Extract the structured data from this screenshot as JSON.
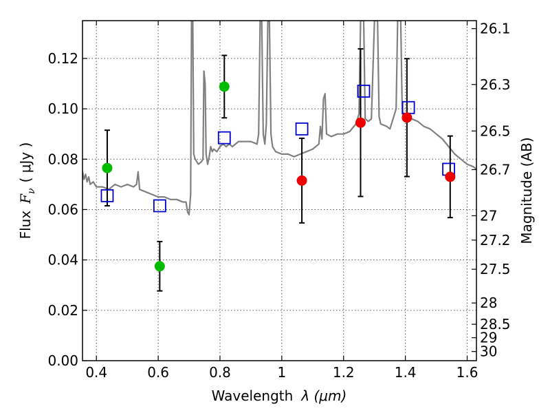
{
  "chart_data": {
    "type": "scatter",
    "xlabel_text": "Wavelength",
    "xlabel_math": "λ (μm)",
    "ylabel_text": "Flux",
    "ylabel_math_F": "F",
    "ylabel_math_nu": "ν",
    "ylabel_unit": "( μJy )",
    "y2label": "Magnitude (AB)",
    "xlim": [
      0.355,
      1.63
    ],
    "ylim": [
      0.0,
      0.135
    ],
    "x_ticks": [
      0.4,
      0.6,
      0.8,
      1.0,
      1.2,
      1.4,
      1.6
    ],
    "x_tick_labels": [
      "0.4",
      "0.6",
      "0.8",
      "1",
      "1.2",
      "1.4",
      "1.6"
    ],
    "y_ticks": [
      0.0,
      0.02,
      0.04,
      0.06,
      0.08,
      0.1,
      0.12
    ],
    "y_tick_labels": [
      "0.00",
      "0.02",
      "0.04",
      "0.06",
      "0.08",
      "0.10",
      "0.12"
    ],
    "y2_ticks": [
      26.1,
      26.3,
      26.5,
      26.7,
      27,
      27.2,
      27.5,
      28,
      28.5,
      29,
      30
    ],
    "y2_tick_labels": [
      "26.1",
      "26.3",
      "26.5",
      "26.7",
      "27",
      "27.2",
      "27.5",
      "28",
      "28.5",
      "29",
      "30"
    ],
    "grid": true,
    "colors": {
      "spectrum": "#808080",
      "green_points": "#00bb00",
      "red_points": "#ee0000",
      "model_squares": "#0000cc",
      "errorbars": "#000000"
    },
    "spectrum": [
      [
        0.355,
        0.075
      ],
      [
        0.36,
        0.072
      ],
      [
        0.365,
        0.074
      ],
      [
        0.37,
        0.071
      ],
      [
        0.375,
        0.073
      ],
      [
        0.38,
        0.07
      ],
      [
        0.39,
        0.071
      ],
      [
        0.4,
        0.069
      ],
      [
        0.42,
        0.069
      ],
      [
        0.44,
        0.068
      ],
      [
        0.46,
        0.07
      ],
      [
        0.48,
        0.069
      ],
      [
        0.5,
        0.07
      ],
      [
        0.52,
        0.069
      ],
      [
        0.53,
        0.07
      ],
      [
        0.535,
        0.075
      ],
      [
        0.54,
        0.068
      ],
      [
        0.56,
        0.067
      ],
      [
        0.58,
        0.066
      ],
      [
        0.6,
        0.065
      ],
      [
        0.62,
        0.065
      ],
      [
        0.64,
        0.064
      ],
      [
        0.66,
        0.064
      ],
      [
        0.68,
        0.063
      ],
      [
        0.69,
        0.063
      ],
      [
        0.695,
        0.059
      ],
      [
        0.7,
        0.058
      ],
      [
        0.705,
        0.066
      ],
      [
        0.708,
        0.135
      ],
      [
        0.712,
        0.135
      ],
      [
        0.715,
        0.082
      ],
      [
        0.72,
        0.08
      ],
      [
        0.73,
        0.078
      ],
      [
        0.74,
        0.079
      ],
      [
        0.745,
        0.08
      ],
      [
        0.748,
        0.115
      ],
      [
        0.752,
        0.11
      ],
      [
        0.755,
        0.082
      ],
      [
        0.76,
        0.078
      ],
      [
        0.765,
        0.081
      ],
      [
        0.77,
        0.085
      ],
      [
        0.775,
        0.083
      ],
      [
        0.78,
        0.084
      ],
      [
        0.79,
        0.083
      ],
      [
        0.8,
        0.085
      ],
      [
        0.81,
        0.086
      ],
      [
        0.82,
        0.085
      ],
      [
        0.83,
        0.086
      ],
      [
        0.84,
        0.085
      ],
      [
        0.86,
        0.087
      ],
      [
        0.88,
        0.087
      ],
      [
        0.9,
        0.087
      ],
      [
        0.92,
        0.086
      ],
      [
        0.925,
        0.09
      ],
      [
        0.93,
        0.135
      ],
      [
        0.935,
        0.135
      ],
      [
        0.94,
        0.09
      ],
      [
        0.945,
        0.086
      ],
      [
        0.95,
        0.094
      ],
      [
        0.955,
        0.135
      ],
      [
        0.96,
        0.135
      ],
      [
        0.965,
        0.09
      ],
      [
        0.97,
        0.085
      ],
      [
        0.98,
        0.083
      ],
      [
        1.0,
        0.082
      ],
      [
        1.02,
        0.082
      ],
      [
        1.04,
        0.081
      ],
      [
        1.06,
        0.082
      ],
      [
        1.08,
        0.083
      ],
      [
        1.1,
        0.084
      ],
      [
        1.12,
        0.086
      ],
      [
        1.125,
        0.093
      ],
      [
        1.13,
        0.088
      ],
      [
        1.135,
        0.104
      ],
      [
        1.14,
        0.106
      ],
      [
        1.145,
        0.09
      ],
      [
        1.16,
        0.089
      ],
      [
        1.18,
        0.09
      ],
      [
        1.2,
        0.09
      ],
      [
        1.22,
        0.091
      ],
      [
        1.24,
        0.094
      ],
      [
        1.25,
        0.098
      ],
      [
        1.255,
        0.135
      ],
      [
        1.265,
        0.135
      ],
      [
        1.27,
        0.096
      ],
      [
        1.28,
        0.095
      ],
      [
        1.29,
        0.096
      ],
      [
        1.3,
        0.135
      ],
      [
        1.31,
        0.135
      ],
      [
        1.315,
        0.097
      ],
      [
        1.32,
        0.094
      ],
      [
        1.34,
        0.093
      ],
      [
        1.35,
        0.092
      ],
      [
        1.36,
        0.096
      ],
      [
        1.37,
        0.1
      ],
      [
        1.375,
        0.135
      ],
      [
        1.385,
        0.135
      ],
      [
        1.39,
        0.098
      ],
      [
        1.4,
        0.097
      ],
      [
        1.42,
        0.096
      ],
      [
        1.44,
        0.095
      ],
      [
        1.46,
        0.093
      ],
      [
        1.48,
        0.092
      ],
      [
        1.5,
        0.09
      ],
      [
        1.52,
        0.088
      ],
      [
        1.54,
        0.085
      ],
      [
        1.56,
        0.082
      ],
      [
        1.58,
        0.08
      ],
      [
        1.6,
        0.078
      ],
      [
        1.62,
        0.077
      ],
      [
        1.63,
        0.076
      ]
    ],
    "observed_points": [
      {
        "x": 0.435,
        "y": 0.0765,
        "err": 0.015,
        "color": "green"
      },
      {
        "x": 0.605,
        "y": 0.0375,
        "err": 0.0098,
        "color": "green"
      },
      {
        "x": 0.814,
        "y": 0.1088,
        "err": 0.0124,
        "color": "green"
      },
      {
        "x": 1.065,
        "y": 0.0715,
        "err": 0.0168,
        "color": "red"
      },
      {
        "x": 1.255,
        "y": 0.0945,
        "err": 0.0293,
        "color": "red"
      },
      {
        "x": 1.405,
        "y": 0.0965,
        "err": 0.0234,
        "color": "red"
      },
      {
        "x": 1.545,
        "y": 0.073,
        "err": 0.0162,
        "color": "red"
      }
    ],
    "model_points": [
      {
        "x": 0.435,
        "y": 0.0655
      },
      {
        "x": 0.605,
        "y": 0.0615
      },
      {
        "x": 0.814,
        "y": 0.0885
      },
      {
        "x": 1.065,
        "y": 0.092
      },
      {
        "x": 1.265,
        "y": 0.107
      },
      {
        "x": 1.41,
        "y": 0.1005
      },
      {
        "x": 1.54,
        "y": 0.076
      }
    ]
  }
}
